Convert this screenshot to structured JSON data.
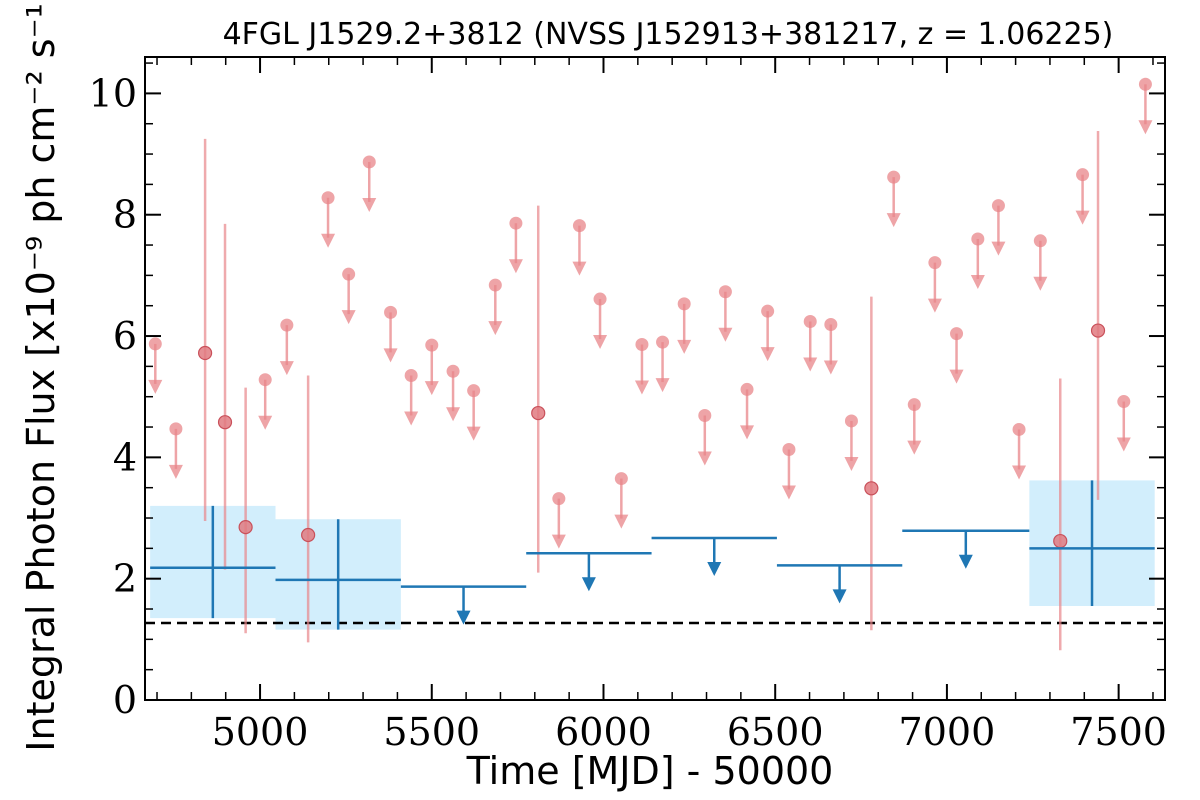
{
  "chart_data": {
    "type": "scatter",
    "title": "4FGL J1529.2+3812 (NVSS J152913+381217, z = 1.06225)",
    "xlabel": "Time [MJD] - 50000",
    "ylabel": "Integral Photon Flux [x10⁻⁹ ph cm⁻² s⁻¹]",
    "xlim": [
      4665,
      7635
    ],
    "ylim": [
      0,
      10.6
    ],
    "xticks": [
      5000,
      5500,
      6000,
      6500,
      7000,
      7500
    ],
    "yticks": [
      0,
      2,
      4,
      6,
      8,
      10
    ],
    "grid": false,
    "legend": "none",
    "reference_line": {
      "y": 1.27,
      "style": "dashed",
      "color": "#000000"
    },
    "colors": {
      "short_bins": "#e8868a",
      "long_bins": "#1f77b4",
      "long_bins_band": "#d2eefc"
    },
    "series": [
      {
        "detections": [
          {
            "x": 4840,
            "y": 5.72,
            "ylow": 2.95,
            "yhigh": 9.25
          },
          {
            "x": 4898,
            "y": 4.58,
            "ylow": 2.15,
            "yhigh": 7.85
          },
          {
            "x": 4958,
            "y": 2.85,
            "ylow": 1.1,
            "yhigh": 5.15
          },
          {
            "x": 5140,
            "y": 2.72,
            "ylow": 0.95,
            "yhigh": 5.35
          },
          {
            "x": 5810,
            "y": 4.73,
            "ylow": 2.1,
            "yhigh": 8.15
          },
          {
            "x": 6780,
            "y": 3.49,
            "ylow": 1.15,
            "yhigh": 6.65
          },
          {
            "x": 7330,
            "y": 2.62,
            "ylow": 0.82,
            "yhigh": 5.3
          },
          {
            "x": 7440,
            "y": 6.09,
            "ylow": 3.3,
            "yhigh": 9.38
          }
        ],
        "upper_limits": [
          {
            "x": 4695,
            "y": 5.87
          },
          {
            "x": 4755,
            "y": 4.47
          },
          {
            "x": 5015,
            "y": 5.28
          },
          {
            "x": 5078,
            "y": 6.18
          },
          {
            "x": 5198,
            "y": 8.28
          },
          {
            "x": 5258,
            "y": 7.02
          },
          {
            "x": 5318,
            "y": 8.87
          },
          {
            "x": 5380,
            "y": 6.39
          },
          {
            "x": 5440,
            "y": 5.35
          },
          {
            "x": 5500,
            "y": 5.85
          },
          {
            "x": 5562,
            "y": 5.42
          },
          {
            "x": 5622,
            "y": 5.1
          },
          {
            "x": 5685,
            "y": 6.84
          },
          {
            "x": 5745,
            "y": 7.86
          },
          {
            "x": 5870,
            "y": 3.32
          },
          {
            "x": 5930,
            "y": 7.82
          },
          {
            "x": 5990,
            "y": 6.61
          },
          {
            "x": 6052,
            "y": 3.65
          },
          {
            "x": 6112,
            "y": 5.86
          },
          {
            "x": 6172,
            "y": 5.9
          },
          {
            "x": 6235,
            "y": 6.53
          },
          {
            "x": 6295,
            "y": 4.69
          },
          {
            "x": 6355,
            "y": 6.73
          },
          {
            "x": 6418,
            "y": 5.12
          },
          {
            "x": 6478,
            "y": 6.41
          },
          {
            "x": 6540,
            "y": 4.13
          },
          {
            "x": 6602,
            "y": 6.24
          },
          {
            "x": 6662,
            "y": 6.19
          },
          {
            "x": 6722,
            "y": 4.6
          },
          {
            "x": 6845,
            "y": 8.62
          },
          {
            "x": 6905,
            "y": 4.87
          },
          {
            "x": 6965,
            "y": 7.21
          },
          {
            "x": 7028,
            "y": 6.04
          },
          {
            "x": 7090,
            "y": 7.6
          },
          {
            "x": 7150,
            "y": 8.15
          },
          {
            "x": 7210,
            "y": 4.46
          },
          {
            "x": 7272,
            "y": 7.57
          },
          {
            "x": 7395,
            "y": 8.66
          },
          {
            "x": 7515,
            "y": 4.92
          },
          {
            "x": 7578,
            "y": 10.15
          }
        ]
      },
      {
        "detections": [
          {
            "x0": 4680,
            "x1": 5045,
            "y": 2.18,
            "ylow": 1.35,
            "yhigh": 3.2
          },
          {
            "x0": 5045,
            "x1": 5410,
            "y": 1.98,
            "ylow": 1.16,
            "yhigh": 2.98
          },
          {
            "x0": 7240,
            "x1": 7605,
            "y": 2.5,
            "ylow": 1.55,
            "yhigh": 3.62
          }
        ],
        "upper_limits": [
          {
            "x0": 5410,
            "x1": 5775,
            "y": 1.87
          },
          {
            "x0": 5775,
            "x1": 6140,
            "y": 2.42
          },
          {
            "x0": 6140,
            "x1": 6505,
            "y": 2.67
          },
          {
            "x0": 6505,
            "x1": 6870,
            "y": 2.22
          },
          {
            "x0": 6870,
            "x1": 7240,
            "y": 2.79
          }
        ]
      }
    ]
  }
}
